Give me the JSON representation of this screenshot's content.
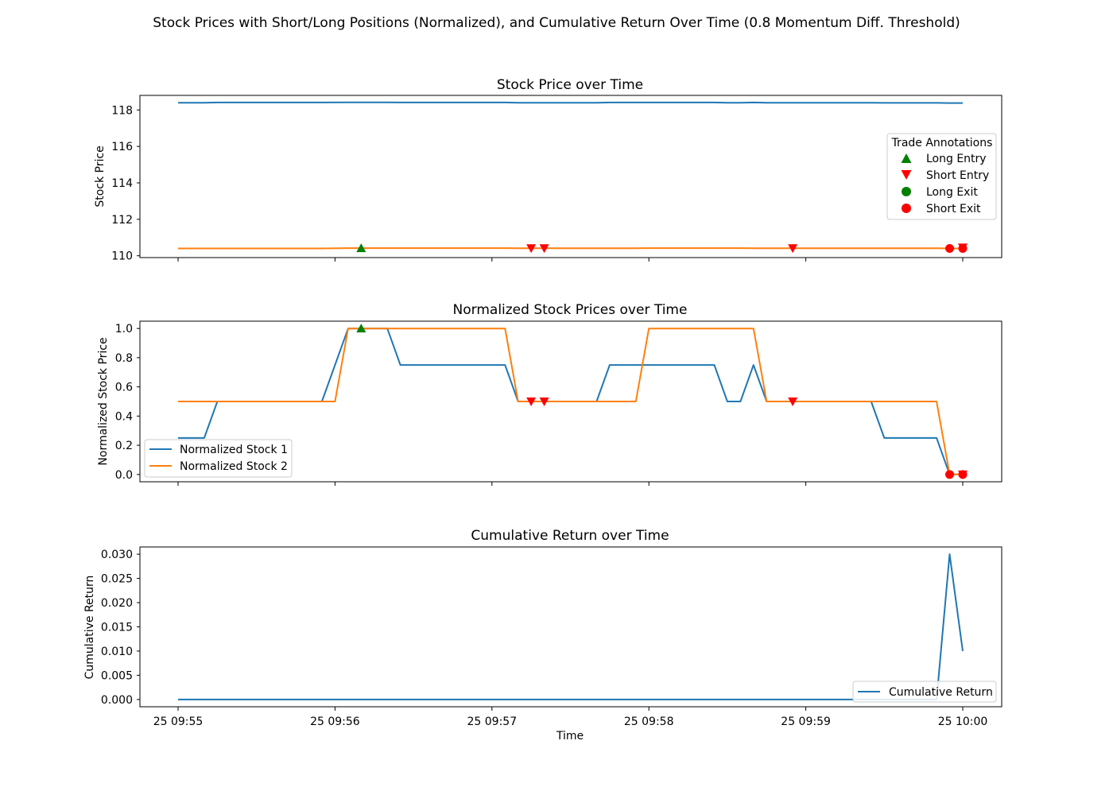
{
  "suptitle": "Stock Prices with Short/Long Positions (Normalized), and Cumulative Return Over Time (0.8 Momentum Diff. Threshold)",
  "colors": {
    "stock1": "#1f77b4",
    "stock2": "#ff7f0e",
    "long": "#008000",
    "short": "#ff0000"
  },
  "shared_x": {
    "label": "Time",
    "tick_labels": [
      "25 09:55",
      "25 09:56",
      "25 09:57",
      "25 09:58",
      "25 09:59",
      "25 10:00"
    ],
    "range": [
      "09:55:00",
      "10:00:00"
    ]
  },
  "chart_data": [
    {
      "type": "line",
      "title": "Stock Price over Time",
      "xlabel": "",
      "ylabel": "Stock Price",
      "ylim": [
        109.9,
        118.8
      ],
      "yticks": [
        110,
        112,
        114,
        116,
        118
      ],
      "ytick_labels": [
        "110",
        "112",
        "114",
        "116",
        "118"
      ],
      "x": [
        "09:55:00",
        "09:55:10",
        "09:55:15",
        "09:55:55",
        "09:56:05",
        "09:56:10",
        "09:56:20",
        "09:56:25",
        "09:57:05",
        "09:57:10",
        "09:57:40",
        "09:57:45",
        "09:57:55",
        "09:58:00",
        "09:58:25",
        "09:58:30",
        "09:58:35",
        "09:58:40",
        "09:58:45",
        "09:59:25",
        "09:59:30",
        "09:59:50",
        "09:59:55",
        "10:00:00"
      ],
      "series": [
        {
          "values": [
            118.4,
            118.4,
            118.41,
            118.41,
            118.42,
            118.42,
            118.42,
            118.41,
            118.41,
            118.4,
            118.4,
            118.41,
            118.41,
            118.41,
            118.41,
            118.4,
            118.4,
            118.41,
            118.4,
            118.4,
            118.39,
            118.39,
            118.38,
            118.38
          ]
        },
        {
          "values": [
            110.4,
            110.4,
            110.4,
            110.4,
            110.42,
            110.42,
            110.42,
            110.42,
            110.42,
            110.41,
            110.41,
            110.41,
            110.41,
            110.42,
            110.42,
            110.42,
            110.42,
            110.41,
            110.41,
            110.41,
            110.41,
            110.41,
            110.4,
            110.4
          ]
        }
      ],
      "markers": [
        {
          "kind": "long-entry",
          "x": "09:56:10",
          "y": 110.42
        },
        {
          "kind": "short-entry",
          "x": "09:57:15",
          "y": 110.41
        },
        {
          "kind": "short-entry",
          "x": "09:57:20",
          "y": 110.41
        },
        {
          "kind": "short-entry",
          "x": "09:58:55",
          "y": 110.41
        },
        {
          "kind": "short-exit",
          "x": "09:59:55",
          "y": 110.4
        },
        {
          "kind": "short-exit",
          "x": "10:00:00",
          "y": 110.4
        },
        {
          "kind": "short-entry",
          "x": "10:00:00",
          "y": 110.45
        }
      ],
      "legend": {
        "placement": "center-right",
        "title": "Trade Annotations",
        "entries": [
          {
            "label": "Long Entry",
            "kind": "long-entry"
          },
          {
            "label": "Short Entry",
            "kind": "short-entry"
          },
          {
            "label": "Long Exit",
            "kind": "long-exit"
          },
          {
            "label": "Short Exit",
            "kind": "short-exit"
          }
        ]
      },
      "grid": false
    },
    {
      "type": "line",
      "title": "Normalized Stock Prices over Time",
      "xlabel": "",
      "ylabel": "Normalized Stock Price",
      "ylim": [
        -0.05,
        1.05
      ],
      "yticks": [
        0.0,
        0.2,
        0.4,
        0.6,
        0.8,
        1.0
      ],
      "ytick_labels": [
        "0.0",
        "0.2",
        "0.4",
        "0.6",
        "0.8",
        "1.0"
      ],
      "series": [
        {
          "name": "Normalized Stock 1",
          "x": [
            "09:55:00",
            "09:55:10",
            "09:55:15",
            "09:55:55",
            "09:56:05",
            "09:56:20",
            "09:56:25",
            "09:57:05",
            "09:57:10",
            "09:57:40",
            "09:57:45",
            "09:58:25",
            "09:58:30",
            "09:58:35",
            "09:58:40",
            "09:58:45",
            "09:59:25",
            "09:59:30",
            "09:59:50",
            "09:59:55",
            "10:00:00"
          ],
          "values": [
            0.25,
            0.25,
            0.5,
            0.5,
            1.0,
            1.0,
            0.75,
            0.75,
            0.5,
            0.5,
            0.75,
            0.75,
            0.5,
            0.5,
            0.75,
            0.5,
            0.5,
            0.25,
            0.25,
            0.0,
            0.0
          ]
        },
        {
          "name": "Normalized Stock 2",
          "x": [
            "09:55:00",
            "09:56:00",
            "09:56:05",
            "09:57:05",
            "09:57:10",
            "09:57:55",
            "09:58:00",
            "09:58:40",
            "09:58:45",
            "09:59:50",
            "09:59:55",
            "10:00:00"
          ],
          "values": [
            0.5,
            0.5,
            1.0,
            1.0,
            0.5,
            0.5,
            1.0,
            1.0,
            0.5,
            0.5,
            0.0,
            0.0
          ]
        }
      ],
      "markers": [
        {
          "kind": "long-entry",
          "x": "09:56:10",
          "y": 1.0
        },
        {
          "kind": "short-entry",
          "x": "09:57:15",
          "y": 0.5
        },
        {
          "kind": "short-entry",
          "x": "09:57:20",
          "y": 0.5
        },
        {
          "kind": "short-entry",
          "x": "09:58:55",
          "y": 0.5
        },
        {
          "kind": "short-exit",
          "x": "09:59:55",
          "y": 0.0
        },
        {
          "kind": "short-exit",
          "x": "10:00:00",
          "y": 0.0
        },
        {
          "kind": "short-entry",
          "x": "10:00:00",
          "y": 0.0
        }
      ],
      "legend": {
        "placement": "lower-left"
      },
      "grid": false
    },
    {
      "type": "line",
      "title": "Cumulative Return over Time",
      "xlabel": "Time",
      "ylabel": "Cumulative Return",
      "ylim": [
        -0.0015,
        0.0315
      ],
      "yticks": [
        0.0,
        0.005,
        0.01,
        0.015,
        0.02,
        0.025,
        0.03
      ],
      "ytick_labels": [
        "0.000",
        "0.005",
        "0.010",
        "0.015",
        "0.020",
        "0.025",
        "0.030"
      ],
      "series": [
        {
          "name": "Cumulative Return",
          "x": [
            "09:55:00",
            "09:59:50",
            "09:59:55",
            "10:00:00"
          ],
          "values": [
            0.0,
            0.0,
            0.03,
            0.01
          ]
        }
      ],
      "legend": {
        "placement": "lower-right"
      },
      "grid": false
    }
  ]
}
